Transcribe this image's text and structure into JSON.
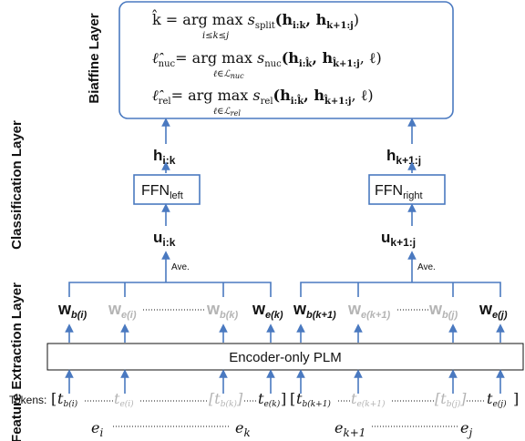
{
  "layers": {
    "classification": "Classification Layer",
    "biaffine": "Biaffine Layer",
    "feature_extraction": "Feature Extraction Layer"
  },
  "biaffine_box": {
    "eq1": {
      "lhs": "k̂ = arg max",
      "func": "s",
      "func_sub": "split",
      "args": "(h",
      "a1": "i:k",
      "mid": ", h",
      "a2": "k+1:j",
      "end": ")",
      "under": "i≤k≤j"
    },
    "eq2": {
      "lhs": "ℓ̂",
      "lhs_sub": "nuc",
      "op": "= arg max",
      "func": "s",
      "func_sub": "nuc",
      "args": "(h",
      "a1": "i:k̂",
      "mid": ", h",
      "a2": "k̂+1:j",
      "end": ", ℓ)",
      "under": "ℓ∈ℒ",
      "under_sub": "nuc"
    },
    "eq3": {
      "lhs": "ℓ̂",
      "lhs_sub": "rel",
      "op": "= arg max",
      "func": "s",
      "func_sub": "rel",
      "args": "(h",
      "a1": "i:k̂",
      "mid": ", h",
      "a2": "k̂+1:j",
      "end": ", ℓ)",
      "under": "ℓ∈ℒ",
      "under_sub": "rel"
    }
  },
  "left_branch": {
    "h": "h",
    "h_sub": "i:k",
    "ffn": "FFN",
    "ffn_sub": "left",
    "u": "u",
    "u_sub": "i:k",
    "ave": "Ave.",
    "w1_sub": "b(i)",
    "w2_sub": "e(i)",
    "w3_sub": "b(k)",
    "w4_sub": "e(k)"
  },
  "right_branch": {
    "h": "h",
    "h_sub": "k+1:j",
    "ffn": "FFN",
    "ffn_sub": "right",
    "u": "u",
    "u_sub": "k+1:j",
    "ave": "Ave.",
    "w1_sub": "b(k+1)",
    "w2_sub": "e(k+1)",
    "w3_sub": "b(j)",
    "w4_sub": "e(j)"
  },
  "w_symbol": "w",
  "t_symbol": "t",
  "encoder": {
    "label": "Encoder-only PLM"
  },
  "tokens": {
    "label": "Tokens:",
    "left_open": "[",
    "left_close": "]",
    "right_open": "[",
    "right_close": "]",
    "t1": "b(i)",
    "t2": "e(i)",
    "t3": "b(k)",
    "t4": "e(k)",
    "t5": "b(k+1)",
    "t6": "e(k+1)",
    "t7": "b(j)",
    "t8": "e(j)"
  },
  "edus": {
    "e_symbol": "e",
    "e1_sub": "i",
    "e2_sub": "k",
    "e3_sub": "k+1",
    "e4_sub": "j"
  }
}
